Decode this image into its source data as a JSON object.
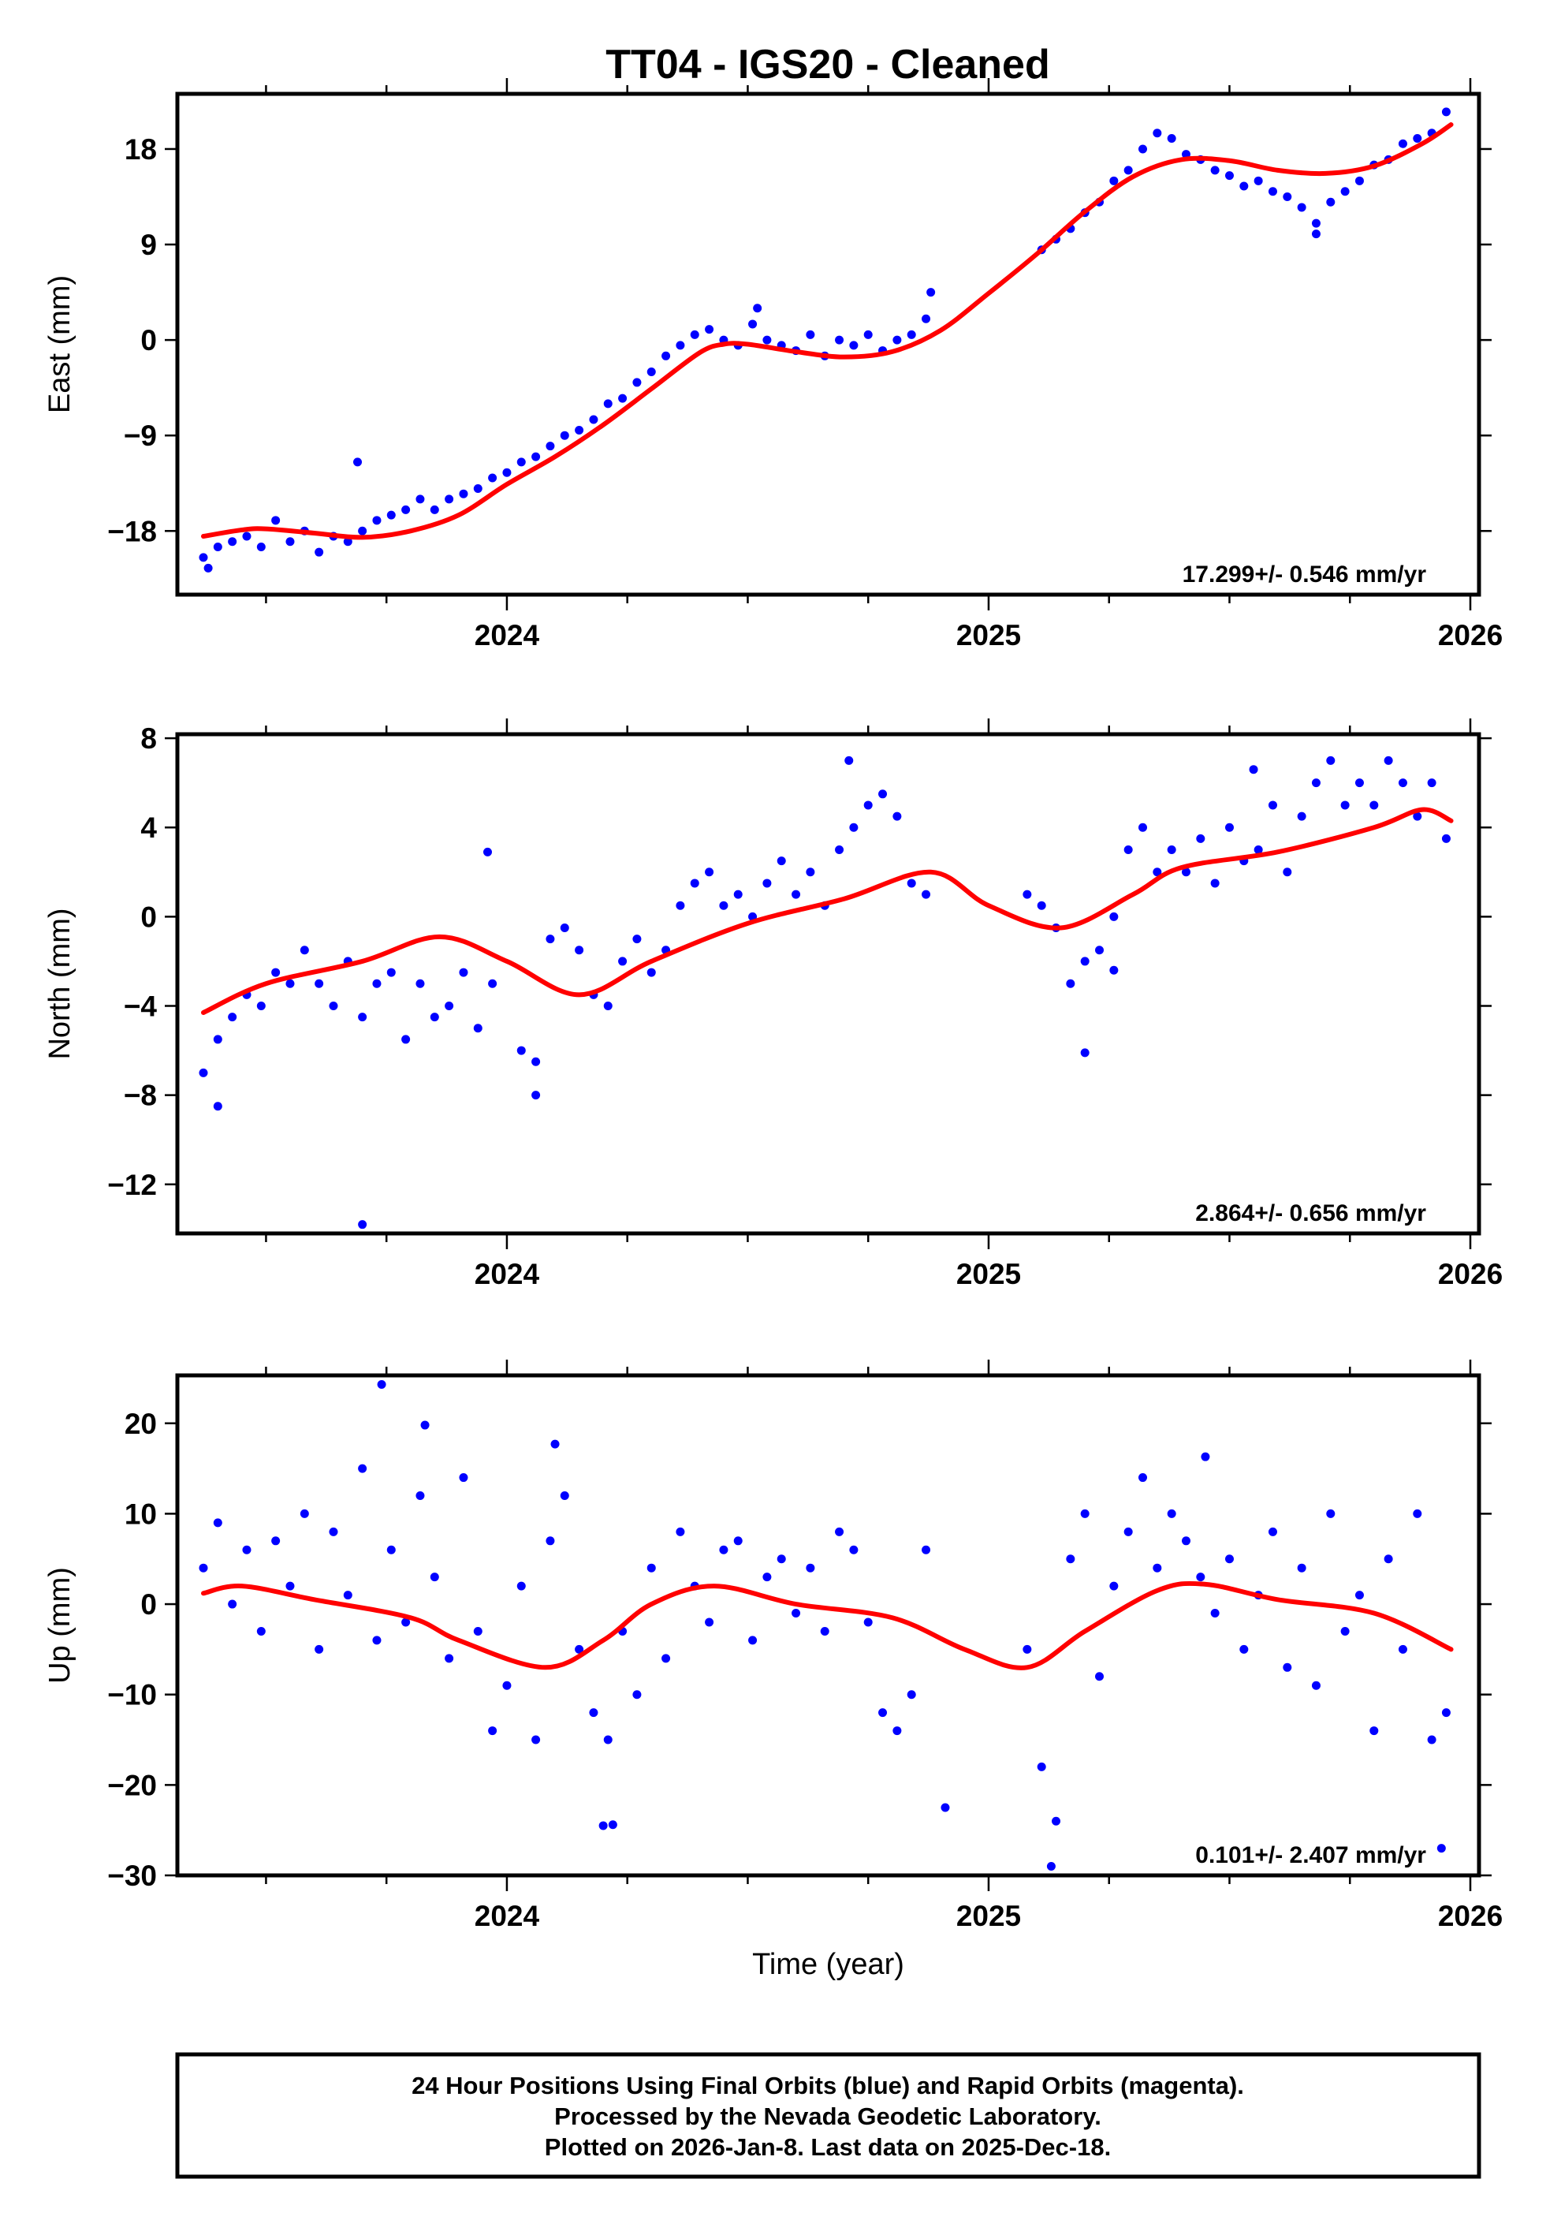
{
  "title": "TT04  - IGS20 - Cleaned",
  "colors": {
    "final_orbits": "#0000ff",
    "fit": "#ff0000",
    "frame": "#000000"
  },
  "footer": {
    "lines": [
      "24 Hour Positions Using Final Orbits (blue) and Rapid Orbits (magenta).",
      "Processed by the Nevada Geodetic Laboratory.",
      "Plotted on 2026-Jan-8. Last data on 2025-Dec-18."
    ]
  },
  "chart_data": [
    {
      "type": "scatter",
      "ylabel": "East (mm)",
      "xlabel": "",
      "xlim": [
        2023.316,
        2026.018
      ],
      "ylim": [
        -24.0,
        23.2
      ],
      "xticks": [
        2024,
        2025,
        2026
      ],
      "yticks": [
        18,
        9,
        0,
        -9,
        -18
      ],
      "rate_label": "17.299+/- 0.546 mm/yr",
      "x_start": 2023.37,
      "x_step": 0.03,
      "y": [
        -20.5,
        -19.5,
        -19,
        -18.5,
        -19.5,
        -17,
        -19,
        -18,
        -20,
        -18.5,
        -19,
        -18,
        -17,
        -16.5,
        -16,
        -15,
        -16,
        -15,
        -14.5,
        -14,
        -13,
        -12.5,
        -11.5,
        -11,
        -10,
        -9,
        -8.5,
        -7.5,
        -6,
        -5.5,
        -4,
        -3,
        -1.5,
        -0.5,
        0.5,
        1,
        0,
        -0.5,
        1.5,
        0,
        -0.5,
        -1,
        0.5,
        -1.5,
        0,
        -0.5,
        0.5,
        -1,
        0,
        0.5,
        2,
        null,
        null,
        null,
        null,
        null,
        null,
        null,
        8.5,
        9.5,
        10.5,
        12,
        13,
        15,
        16,
        18,
        19.5,
        19,
        17.5,
        17,
        16,
        15.5,
        14.5,
        15,
        14,
        13.5,
        12.5,
        11,
        13,
        14,
        15,
        16.5,
        17,
        18.5,
        19,
        19.5,
        21.5
      ],
      "extra_points": [
        [
          2023.69,
          -11.5
        ],
        [
          2023.38,
          -21.5
        ],
        [
          2024.52,
          3
        ],
        [
          2024.88,
          4.5
        ],
        [
          2025.68,
          10
        ]
      ],
      "fit": {
        "x": [
          2023.37,
          2023.45,
          2023.5,
          2023.6,
          2023.7,
          2023.8,
          2023.9,
          2024.0,
          2024.1,
          2024.2,
          2024.3,
          2024.4,
          2024.45,
          2024.5,
          2024.6,
          2024.7,
          2024.8,
          2024.9,
          2025.0,
          2025.1,
          2025.2,
          2025.3,
          2025.4,
          2025.5,
          2025.6,
          2025.7,
          2025.8,
          2025.9,
          2025.96
        ],
        "y": [
          -18.5,
          -17.9,
          -17.8,
          -18.2,
          -18.6,
          -18.0,
          -16.5,
          -13.6,
          -11.0,
          -8.0,
          -4.6,
          -1.2,
          -0.4,
          -0.4,
          -1.1,
          -1.6,
          -1.1,
          0.9,
          4.4,
          8.1,
          12.1,
          15.4,
          17.0,
          16.9,
          16.0,
          15.7,
          16.4,
          18.5,
          20.3
        ]
      }
    },
    {
      "type": "scatter",
      "ylabel": "North (mm)",
      "xlabel": "",
      "xlim": [
        2023.316,
        2026.018
      ],
      "ylim": [
        -14.2,
        8.18
      ],
      "xticks": [
        2024,
        2025,
        2026
      ],
      "yticks": [
        8,
        4,
        0,
        -4,
        -8,
        -12
      ],
      "rate_label": "2.864+/- 0.656 mm/yr",
      "x_start": 2023.37,
      "x_step": 0.03,
      "y": [
        -7,
        -5.5,
        -4.5,
        -3.5,
        -4,
        -2.5,
        -3,
        -1.5,
        -3,
        -4,
        -2,
        -4.5,
        -3,
        -2.5,
        -5.5,
        -3,
        -4.5,
        -4,
        -2.5,
        -5,
        -3,
        null,
        -6,
        -6.5,
        -1,
        -0.5,
        -1.5,
        -3.5,
        -4,
        -2,
        -1,
        -2.5,
        -1.5,
        0.5,
        1.5,
        2,
        0.5,
        1,
        0,
        1.5,
        2.5,
        1,
        2,
        0.5,
        3,
        4,
        5,
        5.5,
        4.5,
        1.5,
        1,
        null,
        null,
        null,
        null,
        null,
        null,
        1,
        0.5,
        -0.5,
        -3,
        -2,
        -1.5,
        0,
        3,
        4,
        2,
        3,
        2,
        3.5,
        1.5,
        4,
        2.5,
        3,
        5,
        2,
        4.5,
        6,
        7,
        5,
        6,
        5,
        7,
        6,
        4.5,
        6,
        3.5
      ],
      "extra_points": [
        [
          2023.7,
          -13.8
        ],
        [
          2023.4,
          -8.5
        ],
        [
          2023.96,
          2.9
        ],
        [
          2024.06,
          -8
        ],
        [
          2024.71,
          7
        ],
        [
          2025.2,
          -6.1
        ],
        [
          2025.55,
          6.6
        ],
        [
          2025.26,
          -2.4
        ]
      ],
      "fit": {
        "x": [
          2023.37,
          2023.5,
          2023.7,
          2023.86,
          2024.0,
          2024.15,
          2024.3,
          2024.5,
          2024.7,
          2024.88,
          2025.0,
          2025.15,
          2025.3,
          2025.4,
          2025.6,
          2025.8,
          2025.9,
          2025.96
        ],
        "y": [
          -4.3,
          -3.0,
          -2.0,
          -0.9,
          -2.0,
          -3.5,
          -2.0,
          -0.3,
          0.8,
          2.0,
          0.5,
          -0.5,
          1.0,
          2.2,
          2.9,
          4.0,
          4.8,
          4.3
        ]
      }
    },
    {
      "type": "scatter",
      "ylabel": "Up (mm)",
      "xlabel": "Time (year)",
      "xlim": [
        2023.316,
        2026.018
      ],
      "ylim": [
        -30,
        25.3
      ],
      "xticks": [
        2024,
        2025,
        2026
      ],
      "yticks": [
        20,
        10,
        0,
        -10,
        -20,
        -30
      ],
      "rate_label": "0.101+/- 2.407 mm/yr",
      "x_start": 2023.37,
      "x_step": 0.03,
      "y": [
        4,
        9,
        0,
        6,
        -3,
        7,
        2,
        10,
        -5,
        8,
        1,
        15,
        -4,
        6,
        -2,
        12,
        3,
        -6,
        14,
        -3,
        -14,
        -9,
        2,
        -15,
        7,
        12,
        -5,
        -12,
        -15,
        -3,
        -10,
        4,
        -6,
        8,
        2,
        -2,
        6,
        7,
        -4,
        3,
        5,
        -1,
        4,
        -3,
        8,
        6,
        -2,
        -12,
        -14,
        -10,
        6,
        null,
        null,
        null,
        null,
        null,
        null,
        -5,
        -18,
        -24,
        5,
        10,
        -8,
        2,
        8,
        14,
        4,
        10,
        7,
        3,
        -1,
        5,
        -5,
        1,
        8,
        -7,
        4,
        -9,
        10,
        -3,
        1,
        -14,
        5,
        -5,
        10,
        -15,
        -12
      ],
      "extra_points": [
        [
          2023.74,
          24.3
        ],
        [
          2023.83,
          19.8
        ],
        [
          2024.2,
          -24.5
        ],
        [
          2024.91,
          -22.5
        ],
        [
          2025.13,
          -29
        ],
        [
          2024.1,
          17.7
        ],
        [
          2024.22,
          -24.4
        ],
        [
          2025.45,
          16.3
        ],
        [
          2025.94,
          -27
        ]
      ],
      "fit": {
        "x": [
          2023.37,
          2023.45,
          2023.6,
          2023.8,
          2023.9,
          2024.08,
          2024.2,
          2024.3,
          2024.43,
          2024.6,
          2024.8,
          2024.95,
          2025.08,
          2025.2,
          2025.35,
          2025.45,
          2025.6,
          2025.8,
          2025.96
        ],
        "y": [
          1.2,
          2.0,
          0.5,
          -1.5,
          -4.0,
          -7.0,
          -4.0,
          0.0,
          2.0,
          0.0,
          -1.5,
          -5.0,
          -7.0,
          -3.0,
          1.5,
          2.2,
          0.5,
          -1.0,
          -5.0
        ]
      }
    }
  ]
}
